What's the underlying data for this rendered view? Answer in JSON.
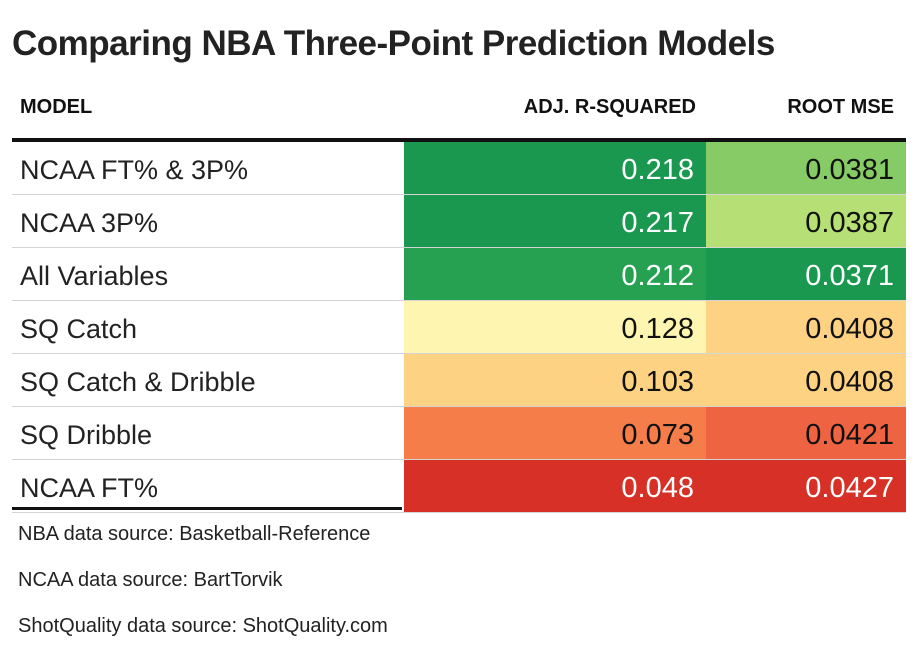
{
  "chart_data": {
    "type": "table",
    "title": "Comparing NBA Three-Point Prediction Models",
    "columns": [
      "MODEL",
      "ADJ. R-SQUARED",
      "ROOT MSE"
    ],
    "rows": [
      {
        "model": "NCAA FT% & 3P%",
        "adj_r2": "0.218",
        "rmse": "0.0381",
        "r2_color": "#1a9850",
        "rmse_color": "#87cb66",
        "r2_text": "#ffffff",
        "rmse_text": "#111111"
      },
      {
        "model": "NCAA 3P%",
        "adj_r2": "0.217",
        "rmse": "0.0387",
        "r2_color": "#1a9850",
        "rmse_color": "#b6df75",
        "r2_text": "#ffffff",
        "rmse_text": "#111111"
      },
      {
        "model": "All Variables",
        "adj_r2": "0.212",
        "rmse": "0.0371",
        "r2_color": "#26a152",
        "rmse_color": "#1a9850",
        "r2_text": "#ffffff",
        "rmse_text": "#ffffff"
      },
      {
        "model": "SQ Catch",
        "adj_r2": "0.128",
        "rmse": "0.0408",
        "r2_color": "#fdf5b0",
        "rmse_color": "#fed283",
        "r2_text": "#111111",
        "rmse_text": "#111111"
      },
      {
        "model": "SQ Catch & Dribble",
        "adj_r2": "0.103",
        "rmse": "0.0408",
        "r2_color": "#fed283",
        "rmse_color": "#fed283",
        "r2_text": "#111111",
        "rmse_text": "#111111"
      },
      {
        "model": "SQ Dribble",
        "adj_r2": "0.073",
        "rmse": "0.0421",
        "r2_color": "#f47d4a",
        "rmse_color": "#ee6442",
        "r2_text": "#111111",
        "rmse_text": "#111111"
      },
      {
        "model": "NCAA FT%",
        "adj_r2": "0.048",
        "rmse": "0.0427",
        "r2_color": "#d73027",
        "rmse_color": "#d73027",
        "r2_text": "#ffffff",
        "rmse_text": "#ffffff"
      }
    ],
    "notes": [
      "NBA data source: Basketball-Reference",
      "NCAA data source: BartTorvik",
      "ShotQuality data source: ShotQuality.com"
    ]
  }
}
